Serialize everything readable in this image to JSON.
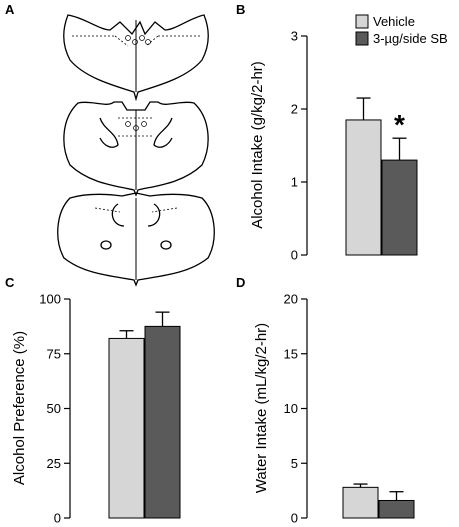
{
  "figure": {
    "panels": [
      {
        "letter": "A"
      },
      {
        "letter": "B"
      },
      {
        "letter": "C"
      },
      {
        "letter": "D"
      }
    ],
    "legend": [
      {
        "label": "Vehicle",
        "color": "#d6d6d6"
      },
      {
        "label": "3-µg/side SB",
        "color": "#5a5a5a"
      }
    ],
    "significance_mark": "*"
  },
  "chart_data": [
    {
      "panel": "B",
      "type": "bar",
      "ylabel": "Alcohol Intake (g/kg/2-hr)",
      "ylim": [
        0,
        3
      ],
      "yticks": [
        "0",
        "1",
        "2",
        "3"
      ],
      "series": [
        {
          "name": "Vehicle",
          "values": [
            1.85
          ],
          "errors": [
            0.3
          ]
        },
        {
          "name": "3-µg/side SB",
          "values": [
            1.3
          ],
          "errors": [
            0.3
          ]
        }
      ],
      "annotation": "*",
      "legend": "top"
    },
    {
      "panel": "C",
      "type": "bar",
      "ylabel": "Alcohol Preference (%)",
      "ylim": [
        0,
        100
      ],
      "yticks": [
        "0",
        "25",
        "50",
        "75",
        "100"
      ],
      "series": [
        {
          "name": "Vehicle",
          "values": [
            82
          ],
          "errors": [
            3.5
          ]
        },
        {
          "name": "3-µg/side SB",
          "values": [
            87.5
          ],
          "errors": [
            6.5
          ]
        }
      ]
    },
    {
      "panel": "D",
      "type": "bar",
      "ylabel": "Water Intake (mL/kg/2-hr)",
      "ylim": [
        0,
        20
      ],
      "yticks": [
        "0",
        "5",
        "10",
        "15",
        "20"
      ],
      "series": [
        {
          "name": "Vehicle",
          "values": [
            2.8
          ],
          "errors": [
            0.3
          ]
        },
        {
          "name": "3-µg/side SB",
          "values": [
            1.6
          ],
          "errors": [
            0.8
          ]
        }
      ]
    }
  ]
}
